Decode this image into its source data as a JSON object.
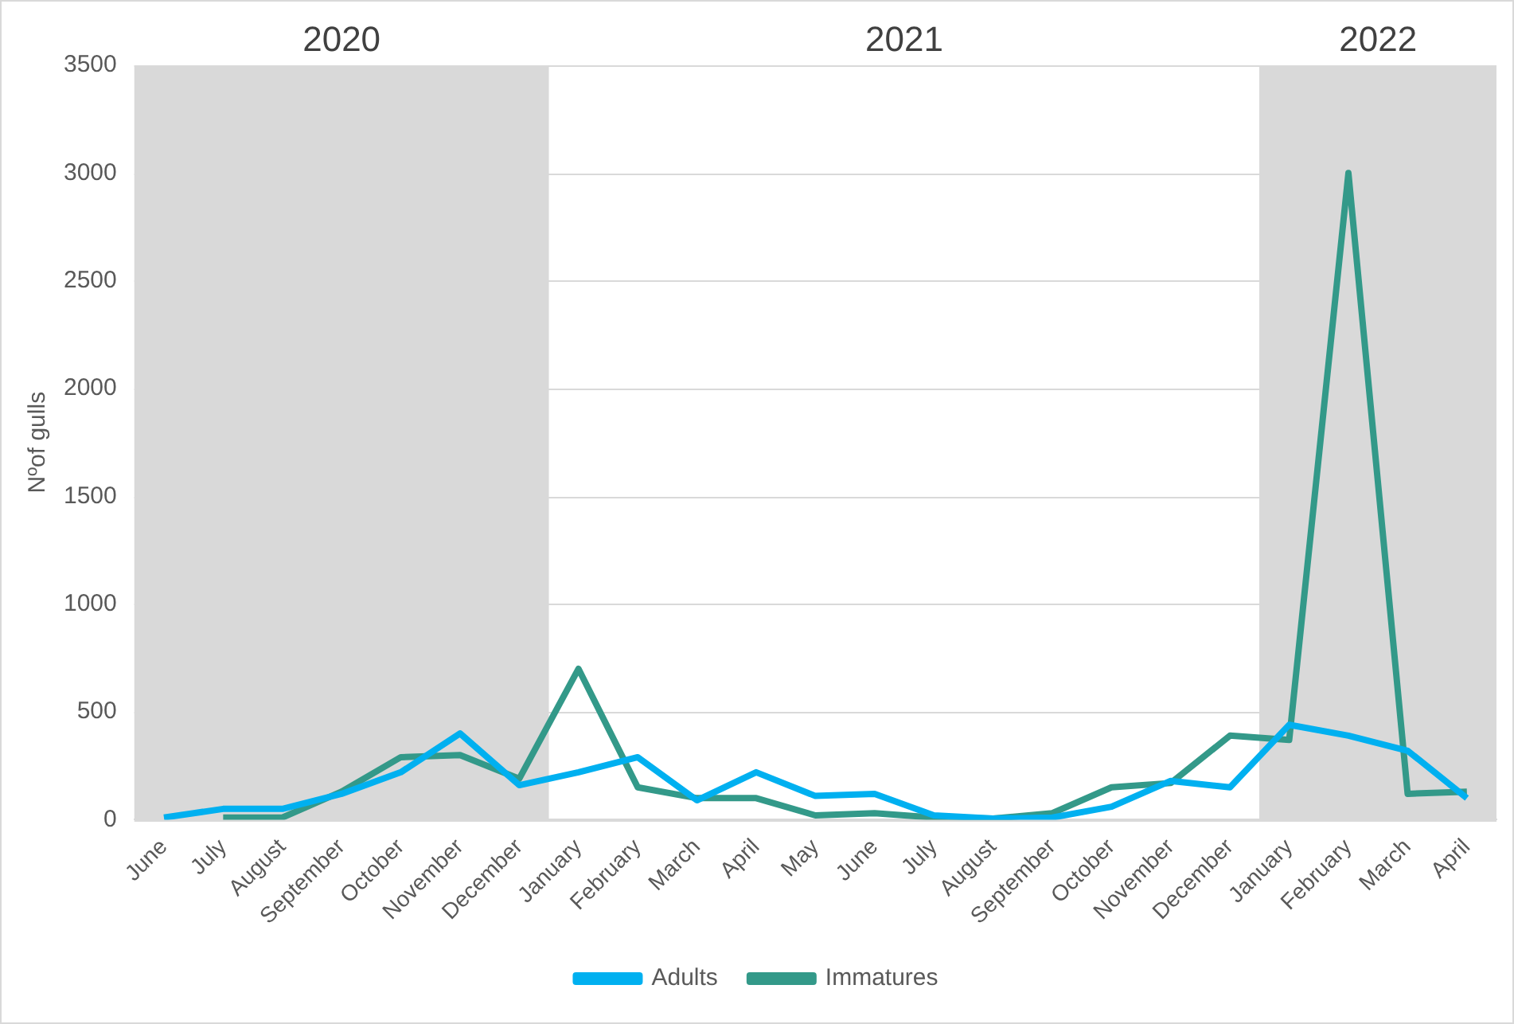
{
  "chart_data": {
    "type": "line",
    "ylabel": "Nºof gulls",
    "categories": [
      "June",
      "July",
      "August",
      "September",
      "October",
      "November",
      "December",
      "January",
      "February",
      "March",
      "April",
      "May",
      "June",
      "July",
      "August",
      "September",
      "October",
      "November",
      "December",
      "January",
      "February",
      "March",
      "April"
    ],
    "series": [
      {
        "name": "Adults",
        "color": "#00b0f0",
        "values": [
          10,
          50,
          50,
          120,
          220,
          400,
          160,
          220,
          290,
          90,
          220,
          110,
          120,
          20,
          5,
          10,
          60,
          180,
          150,
          440,
          390,
          320,
          100
        ]
      },
      {
        "name": "Immatures",
        "color": "#339989",
        "values": [
          null,
          10,
          10,
          130,
          290,
          300,
          190,
          700,
          150,
          100,
          100,
          20,
          30,
          10,
          5,
          30,
          150,
          170,
          390,
          370,
          3000,
          120,
          130
        ]
      }
    ],
    "ylim": [
      0,
      3500
    ],
    "yticks": [
      0,
      500,
      1000,
      1500,
      2000,
      2500,
      3000,
      3500
    ],
    "grid": "y",
    "legend": "bottom",
    "marker": "none",
    "line_style": "solid",
    "bands": [
      {
        "axis": "x",
        "from": "June",
        "to": "December",
        "label": "2020",
        "color": "#d9d9d9"
      }
    ],
    "annotations": [
      "2021",
      "2022"
    ]
  }
}
